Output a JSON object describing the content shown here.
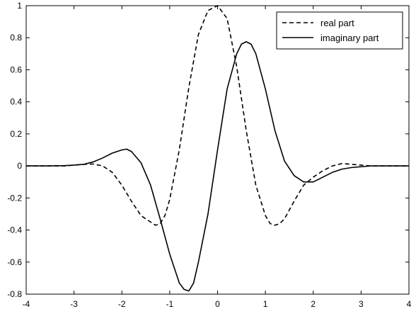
{
  "chart_data": {
    "type": "line",
    "title": "",
    "xlabel": "",
    "ylabel": "",
    "xlim": [
      -4,
      4
    ],
    "ylim": [
      -0.8,
      1
    ],
    "xticks": [
      -4,
      -3,
      -2,
      -1,
      0,
      1,
      2,
      3,
      4
    ],
    "yticks": [
      -0.8,
      -0.6,
      -0.4,
      -0.2,
      0,
      0.2,
      0.4,
      0.6,
      0.8,
      1
    ],
    "xtick_labels": [
      "-4",
      "-3",
      "-2",
      "-1",
      "0",
      "1",
      "2",
      "3",
      "4"
    ],
    "ytick_labels": [
      "-0.8",
      "-0.6",
      "-0.4",
      "-0.2",
      "0",
      "0.2",
      "0.4",
      "0.6",
      "0.8",
      "1"
    ],
    "grid": false,
    "legend_position": "top-right",
    "series": [
      {
        "name": "real part",
        "line_style": "dashed",
        "color": "#000000",
        "x": [
          -4,
          -3.6,
          -3.2,
          -3.0,
          -2.8,
          -2.6,
          -2.4,
          -2.2,
          -2.0,
          -1.8,
          -1.6,
          -1.4,
          -1.3,
          -1.2,
          -1.1,
          -1.0,
          -0.8,
          -0.6,
          -0.4,
          -0.2,
          0.0,
          0.2,
          0.4,
          0.6,
          0.8,
          1.0,
          1.1,
          1.2,
          1.3,
          1.4,
          1.6,
          1.8,
          2.0,
          2.2,
          2.4,
          2.6,
          2.8,
          3.0,
          3.2,
          3.6,
          4
        ],
        "y": [
          0,
          0,
          0,
          0.005,
          0.01,
          0.012,
          0.0,
          -0.04,
          -0.12,
          -0.22,
          -0.31,
          -0.35,
          -0.37,
          -0.36,
          -0.31,
          -0.21,
          0.1,
          0.49,
          0.82,
          0.97,
          1.0,
          0.92,
          0.62,
          0.22,
          -0.12,
          -0.31,
          -0.36,
          -0.37,
          -0.36,
          -0.33,
          -0.22,
          -0.12,
          -0.07,
          -0.03,
          0.0,
          0.015,
          0.01,
          0.005,
          0,
          0,
          0
        ]
      },
      {
        "name": "imaginary part",
        "line_style": "solid",
        "color": "#000000",
        "x": [
          -4,
          -3.6,
          -3.2,
          -3.0,
          -2.8,
          -2.6,
          -2.4,
          -2.2,
          -2.0,
          -1.9,
          -1.8,
          -1.6,
          -1.4,
          -1.2,
          -1.0,
          -0.8,
          -0.7,
          -0.6,
          -0.5,
          -0.4,
          -0.2,
          0.0,
          0.2,
          0.4,
          0.5,
          0.6,
          0.7,
          0.8,
          1.0,
          1.2,
          1.4,
          1.6,
          1.8,
          2.0,
          2.2,
          2.4,
          2.6,
          2.8,
          3.0,
          3.2,
          3.6,
          4
        ],
        "y": [
          0,
          0,
          0.002,
          0.005,
          0.01,
          0.025,
          0.05,
          0.08,
          0.1,
          0.105,
          0.09,
          0.02,
          -0.12,
          -0.33,
          -0.55,
          -0.73,
          -0.77,
          -0.78,
          -0.73,
          -0.6,
          -0.3,
          0.1,
          0.48,
          0.7,
          0.76,
          0.775,
          0.76,
          0.7,
          0.48,
          0.22,
          0.03,
          -0.06,
          -0.1,
          -0.1,
          -0.07,
          -0.04,
          -0.02,
          -0.01,
          -0.005,
          0,
          0,
          0
        ]
      }
    ]
  }
}
